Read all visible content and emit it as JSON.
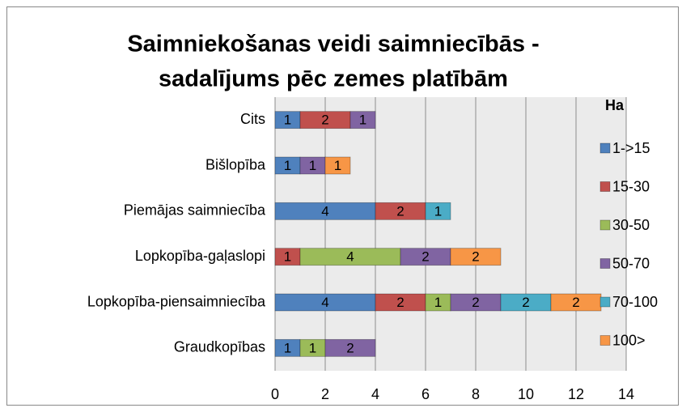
{
  "chart_data": {
    "type": "bar",
    "orientation": "horizontal",
    "stacked": true,
    "title": [
      "Saimniekošanas veidi saimniecībās -",
      "sadalījums pēc zemes platībām"
    ],
    "legend_title": "Ha",
    "legend": "right",
    "grid": true,
    "categories": [
      "Cits",
      "Bišlopība",
      "Piemājas saimniecība",
      "Lopkopība-gaļaslopi",
      "Lopkopība-piensaimniecība",
      "Graudkopības"
    ],
    "series": [
      {
        "name": "1->15",
        "color": "#4f81bd",
        "values": [
          1,
          1,
          4,
          null,
          4,
          1
        ]
      },
      {
        "name": "15-30",
        "color": "#c0504d",
        "values": [
          2,
          null,
          2,
          1,
          2,
          null
        ]
      },
      {
        "name": "30-50",
        "color": "#9bbb59",
        "values": [
          null,
          null,
          null,
          4,
          1,
          1
        ]
      },
      {
        "name": "50-70",
        "color": "#8064a2",
        "values": [
          1,
          1,
          null,
          2,
          2,
          2
        ]
      },
      {
        "name": "70-100",
        "color": "#4bacc6",
        "values": [
          null,
          null,
          1,
          null,
          2,
          null
        ]
      },
      {
        "name": "100>",
        "color": "#f79646",
        "values": [
          null,
          1,
          null,
          2,
          2,
          null
        ]
      }
    ],
    "xlim": [
      0,
      14
    ],
    "xticks": [
      0,
      2,
      4,
      6,
      8,
      10,
      12,
      14
    ]
  }
}
